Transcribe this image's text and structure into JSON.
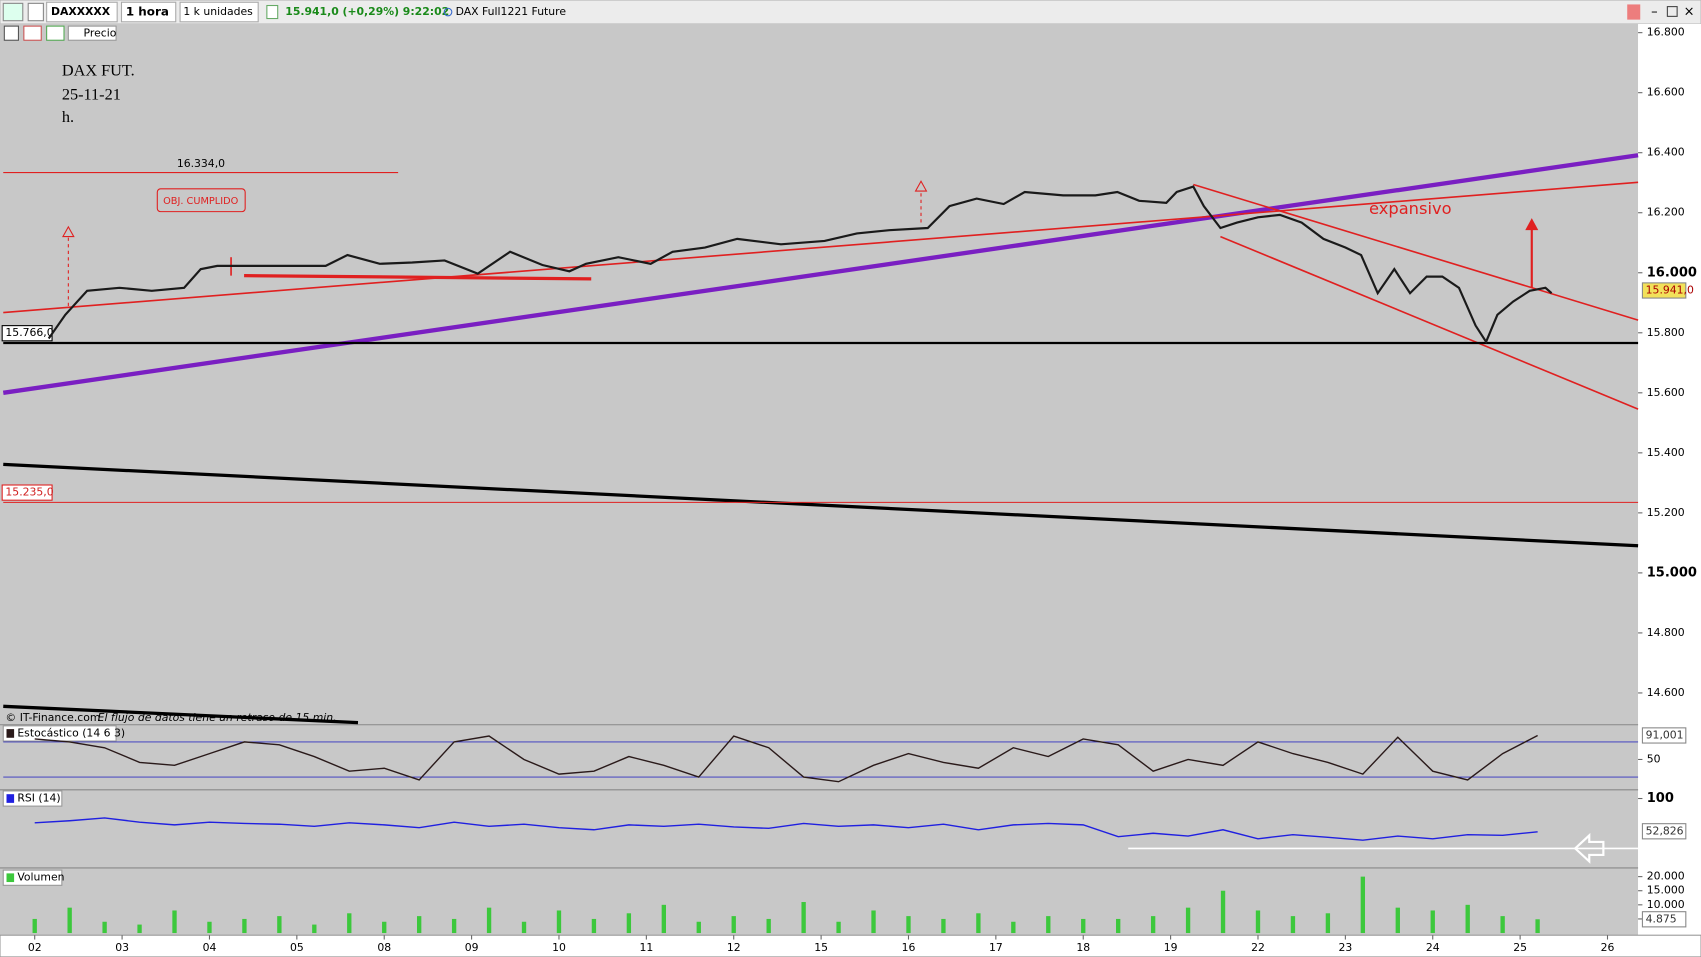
{
  "toolbar": {
    "symbol": "DAXXXXX",
    "interval": "1 hora",
    "units": "1 k unidades",
    "quote": "15.941,0 (+0,29%) 9:22:02",
    "instrument": "DAX Full1221 Future",
    "price_button": "Precio"
  },
  "annotations": {
    "title_lines": [
      "DAX FUT.",
      "25-11-21",
      "h."
    ],
    "target_note": "OBJ. CUMPLIDO",
    "pattern_note": "expansivo",
    "copyright": "© IT-Finance.com",
    "delay_note": "El flujo de datos tiene un retraso de 15 min."
  },
  "chart_data": [
    {
      "type": "line",
      "color": "#1a1a1a",
      "x": [
        0.16,
        0.35,
        0.6,
        0.97,
        1.34,
        1.71,
        1.9,
        2.09,
        2.33,
        2.83,
        3.33,
        3.58,
        3.95,
        4.32,
        4.69,
        5.07,
        5.44,
        5.81,
        6.12,
        6.31,
        6.68,
        7.05,
        7.3,
        7.67,
        8.04,
        8.54,
        9.04,
        9.41,
        9.78,
        10.22,
        10.47,
        10.78,
        11.09,
        11.33,
        11.77,
        12.14,
        12.39,
        12.64,
        12.95,
        13.07,
        13.26,
        13.38,
        13.57,
        13.76,
        14.0,
        14.25,
        14.5,
        14.75,
        15.0,
        15.18,
        15.37,
        15.56,
        15.74,
        15.93,
        16.11,
        16.3,
        16.49,
        16.61,
        16.74,
        16.92,
        17.11,
        17.29,
        17.36
      ],
      "values": [
        15781,
        15860,
        15940,
        15950,
        15940,
        15950,
        16012,
        16023,
        16023,
        16023,
        16023,
        16059,
        16030,
        16034,
        16041,
        15997,
        16070,
        16026,
        16005,
        16030,
        16052,
        16030,
        16070,
        16084,
        16113,
        16095,
        16106,
        16131,
        16142,
        16149,
        16222,
        16247,
        16229,
        16269,
        16258,
        16258,
        16269,
        16240,
        16233,
        16269,
        16287,
        16222,
        16149,
        16167,
        16185,
        16193,
        16167,
        16113,
        16084,
        16059,
        15932,
        16012,
        15932,
        15987,
        15987,
        15950,
        15824,
        15770,
        15860,
        15904,
        15940,
        15950,
        15932
      ],
      "xlim": [
        -0.36,
        18.35
      ],
      "xticks": [
        {
          "value": 0,
          "label": "02"
        },
        {
          "value": 1,
          "label": "03"
        },
        {
          "value": 2,
          "label": "04"
        },
        {
          "value": 3,
          "label": "05"
        },
        {
          "value": 4,
          "label": "08"
        },
        {
          "value": 5,
          "label": "09"
        },
        {
          "value": 6,
          "label": "10"
        },
        {
          "value": 7,
          "label": "11"
        },
        {
          "value": 8,
          "label": "12"
        },
        {
          "value": 9,
          "label": "15"
        },
        {
          "value": 10,
          "label": "16"
        },
        {
          "value": 11,
          "label": "17"
        },
        {
          "value": 12,
          "label": "18"
        },
        {
          "value": 13,
          "label": "19"
        },
        {
          "value": 14,
          "label": "22"
        },
        {
          "value": 15,
          "label": "23"
        },
        {
          "value": 16,
          "label": "24"
        },
        {
          "value": 17,
          "label": "25"
        },
        {
          "value": 18,
          "label": "26"
        }
      ],
      "ylim": [
        14494,
        16829
      ],
      "yticks": [
        {
          "value": 16800,
          "label": "16.800"
        },
        {
          "value": 16600,
          "label": "16.600"
        },
        {
          "value": 16400,
          "label": "16.400"
        },
        {
          "value": 16200,
          "label": "16.200"
        },
        {
          "value": 16000,
          "label": "16.000"
        },
        {
          "value": 15800,
          "label": "15.800"
        },
        {
          "value": 15600,
          "label": "15.600"
        },
        {
          "value": 15400,
          "label": "15.400"
        },
        {
          "value": 15200,
          "label": "15.200"
        },
        {
          "value": 15000,
          "label": "15.000"
        },
        {
          "value": 14800,
          "label": "14.800"
        },
        {
          "value": 14600,
          "label": "14.600"
        }
      ],
      "hlines": [
        {
          "value": 16334,
          "label": "16.334,0",
          "color": "#e02020"
        },
        {
          "value": 15766,
          "label": "15.766,0",
          "color": "#000000"
        },
        {
          "value": 15235,
          "label": "15.235,0",
          "color": "#e02020"
        }
      ],
      "last_value": {
        "value": 15941,
        "label": "15.941,0"
      }
    },
    {
      "type": "line",
      "title": "Estocástico (14 6 3)",
      "color": "#2a1a1a",
      "x": [
        0,
        0.4,
        0.8,
        1.2,
        1.6,
        2,
        2.4,
        2.8,
        3.2,
        3.6,
        4,
        4.4,
        4.8,
        5.2,
        5.6,
        6,
        6.4,
        6.8,
        7.2,
        7.6,
        8,
        8.4,
        8.8,
        9.2,
        9.6,
        10,
        10.4,
        10.8,
        11.2,
        11.6,
        12,
        12.4,
        12.8,
        13.2,
        13.6,
        14,
        14.4,
        14.8,
        15.2,
        15.6,
        16,
        16.4,
        16.8,
        17.2
      ],
      "values": [
        85,
        80,
        70,
        45,
        40,
        60,
        80,
        75,
        55,
        30,
        35,
        15,
        80,
        90,
        50,
        25,
        30,
        55,
        40,
        20,
        90,
        70,
        20,
        12,
        40,
        60,
        45,
        35,
        70,
        55,
        85,
        75,
        30,
        50,
        40,
        80,
        60,
        45,
        25,
        88,
        30,
        15,
        60,
        91
      ],
      "ylim": [
        0,
        100
      ],
      "yticks": [
        50
      ],
      "levels": [
        80,
        20
      ],
      "last_value": {
        "value": 91.001,
        "label": "91,001"
      }
    },
    {
      "type": "line",
      "title": "RSI (14)",
      "color": "#2020e0",
      "x": [
        0,
        0.4,
        0.8,
        1.2,
        1.6,
        2,
        2.4,
        2.8,
        3.2,
        3.6,
        4,
        4.4,
        4.8,
        5.2,
        5.6,
        6,
        6.4,
        6.8,
        7.2,
        7.6,
        8,
        8.4,
        8.8,
        9.2,
        9.6,
        10,
        10.4,
        10.8,
        11.2,
        11.6,
        12,
        12.4,
        12.8,
        13.2,
        13.6,
        14,
        14.4,
        14.8,
        15.2,
        15.6,
        16,
        16.4,
        16.8,
        17.2
      ],
      "values": [
        65,
        68,
        72,
        66,
        62,
        66,
        64,
        63,
        60,
        65,
        62,
        58,
        66,
        60,
        63,
        58,
        55,
        62,
        60,
        63,
        59,
        57,
        64,
        60,
        62,
        58,
        63,
        55,
        62,
        64,
        62,
        45,
        50,
        46,
        55,
        42,
        48,
        44,
        40,
        46,
        42,
        48,
        47,
        52
      ],
      "ylim": [
        0,
        100
      ],
      "yticks": [
        100
      ],
      "last_value": {
        "value": 52.826,
        "label": "52,826"
      }
    },
    {
      "type": "bar",
      "title": "Volumen",
      "color": "#3cc83c",
      "x": [
        0,
        0.4,
        0.8,
        1.2,
        1.6,
        2,
        2.4,
        2.8,
        3.2,
        3.6,
        4,
        4.4,
        4.8,
        5.2,
        5.6,
        6,
        6.4,
        6.8,
        7.2,
        7.6,
        8,
        8.4,
        8.8,
        9.2,
        9.6,
        10,
        10.4,
        10.8,
        11.2,
        11.6,
        12,
        12.4,
        12.8,
        13.2,
        13.6,
        14,
        14.4,
        14.8,
        15.2,
        15.6,
        16,
        16.4,
        16.8,
        17.2
      ],
      "values": [
        5000,
        9000,
        4000,
        3000,
        8000,
        4000,
        5000,
        6000,
        3000,
        7000,
        4000,
        6000,
        5000,
        9000,
        4000,
        8000,
        5000,
        7000,
        10000,
        4000,
        6000,
        5000,
        11000,
        4000,
        8000,
        6000,
        5000,
        7000,
        4000,
        6000,
        5000,
        5000,
        6000,
        9000,
        15000,
        8000,
        6000,
        7000,
        20000,
        9000,
        8000,
        10000,
        6000,
        4875
      ],
      "ylim": [
        0,
        20000
      ],
      "yticks": [
        {
          "value": 20000,
          "label": "20.000"
        },
        {
          "value": 15000,
          "label": "15.000"
        },
        {
          "value": 10000,
          "label": "10.000"
        },
        {
          "value": 5000,
          "label": "5.000"
        }
      ],
      "last_value": {
        "value": 4875,
        "label": "4.875"
      }
    }
  ]
}
